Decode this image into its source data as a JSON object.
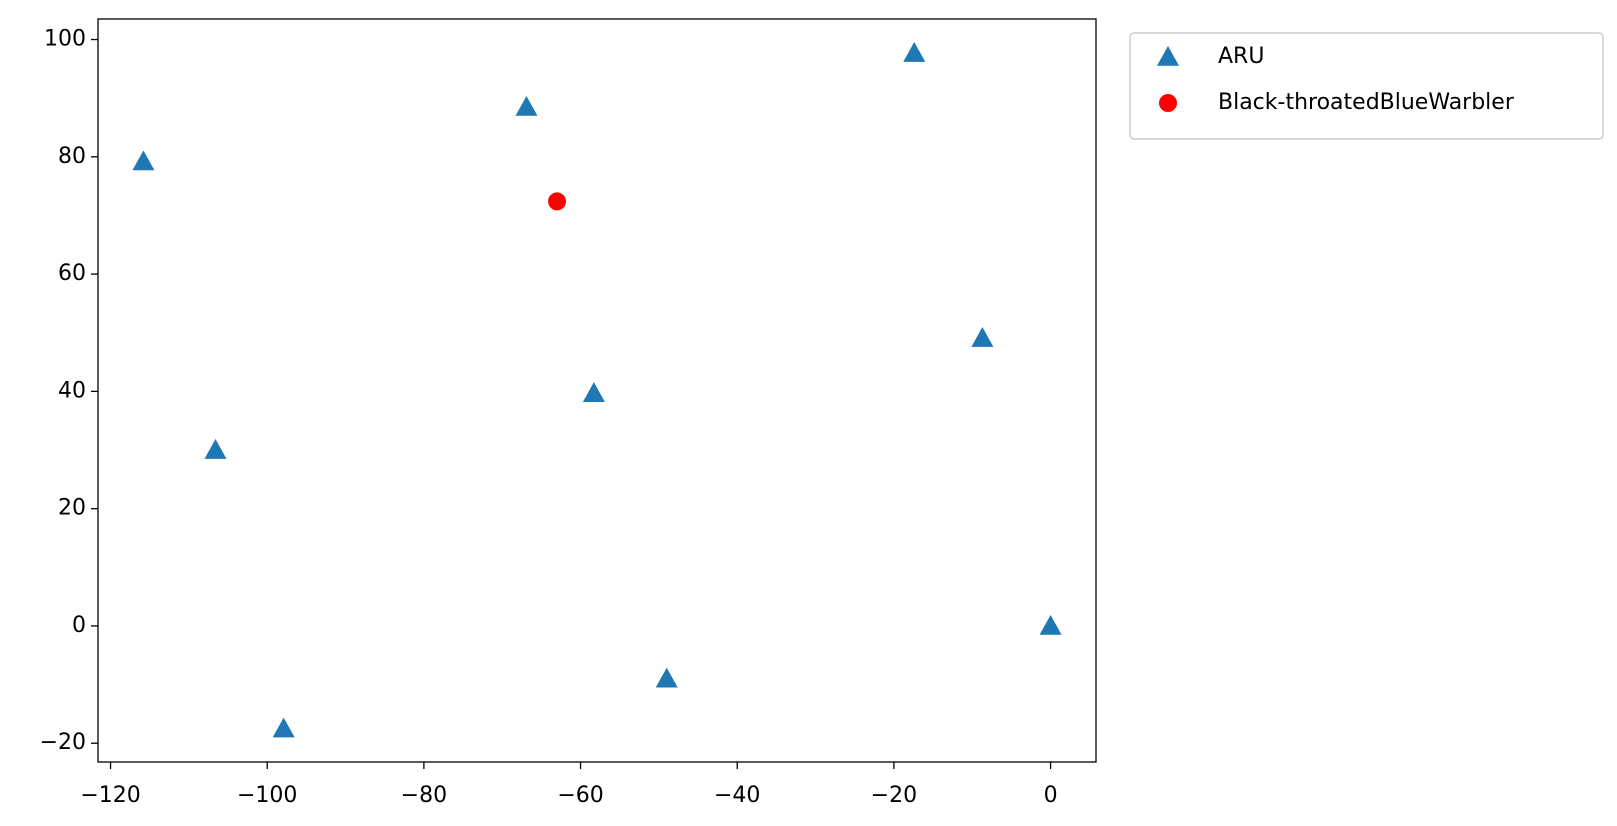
{
  "chart_data": {
    "type": "scatter",
    "series": [
      {
        "name": "ARU",
        "color": "#1f77b4",
        "marker": "triangle",
        "x": [
          -115.8,
          -66.9,
          -17.4,
          -8.7,
          -58.3,
          -106.6,
          0,
          -49.0,
          -97.9
        ],
        "values": [
          79.2,
          88.5,
          97.7,
          49.1,
          39.7,
          30.0,
          0,
          -9.0,
          -17.5
        ]
      },
      {
        "name": "Black-throatedBlueWarbler",
        "color": "#ff0000",
        "marker": "circle",
        "x": [
          -63.0
        ],
        "values": [
          72.4
        ]
      }
    ],
    "xlim": [
      -121.6,
      5.8
    ],
    "ylim": [
      -23.2,
      103.5
    ],
    "xticks": [
      {
        "value": -120,
        "label": "−120"
      },
      {
        "value": -100,
        "label": "−100"
      },
      {
        "value": -80,
        "label": "−80"
      },
      {
        "value": -60,
        "label": "−60"
      },
      {
        "value": -40,
        "label": "−40"
      },
      {
        "value": -20,
        "label": "−20"
      },
      0
    ],
    "yticks": [
      {
        "value": -20,
        "label": "−20"
      },
      0,
      20,
      40,
      60,
      80,
      100
    ],
    "legend": "outside upper right",
    "grid": false
  }
}
